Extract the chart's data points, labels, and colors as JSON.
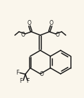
{
  "bg_color": "#faf6ec",
  "line_color": "#1a1a1a",
  "lw": 1.1,
  "figsize": [
    1.22,
    1.42
  ],
  "dpi": 100,
  "xlim": [
    0,
    122
  ],
  "ylim": [
    0,
    142
  ]
}
